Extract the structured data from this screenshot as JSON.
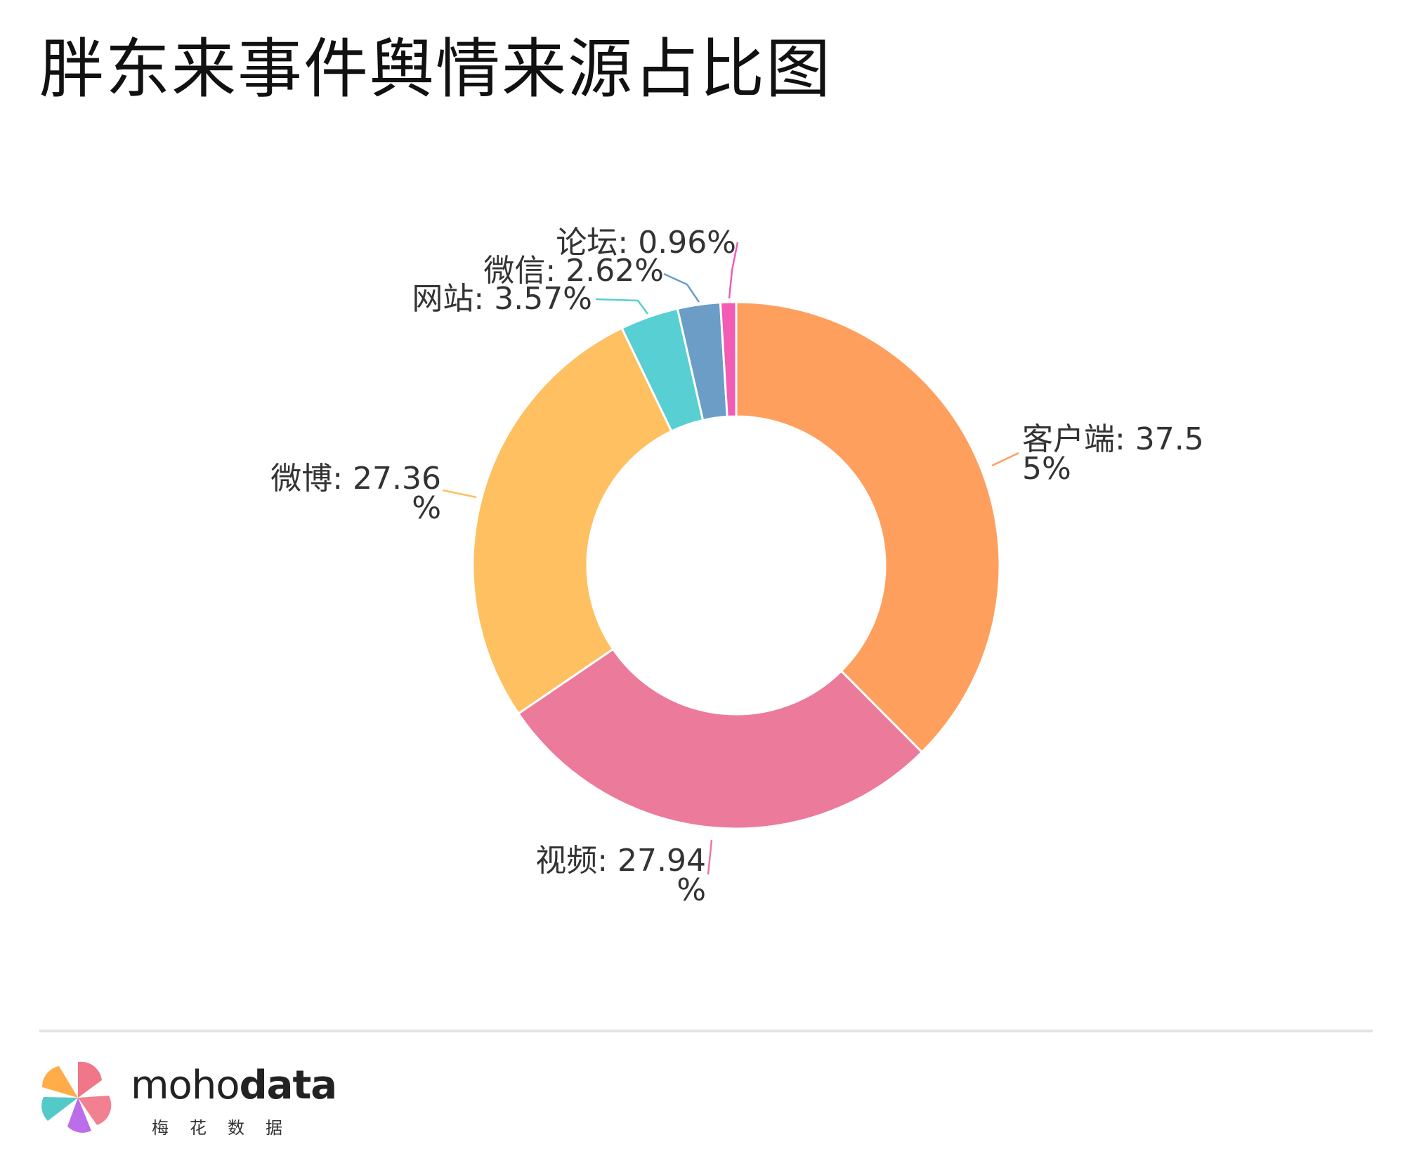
{
  "title": "胖东来事件舆情来源占比图",
  "brand": {
    "name_light": "moho",
    "name_bold": "data",
    "name_cn": "梅花数据"
  },
  "chart_data": {
    "type": "pie",
    "donut": true,
    "title": "胖东来事件舆情来源占比图",
    "slices": [
      {
        "name": "客户端",
        "value": 37.55,
        "label_lines": [
          "客户端: 37.5",
          "5%"
        ],
        "color": "#FF9F5E"
      },
      {
        "name": "视频",
        "value": 27.94,
        "label_lines": [
          "视频: 27.94",
          "%"
        ],
        "color": "#EC7A9A"
      },
      {
        "name": "微博",
        "value": 27.36,
        "label_lines": [
          "微博: 27.36",
          "%"
        ],
        "color": "#FEC061"
      },
      {
        "name": "网站",
        "value": 3.57,
        "label_lines": [
          "网站: 3.57%"
        ],
        "color": "#58CFD2"
      },
      {
        "name": "微信",
        "value": 2.62,
        "label_lines": [
          "微信: 2.62%"
        ],
        "color": "#6B9DC7"
      },
      {
        "name": "论坛",
        "value": 0.96,
        "label_lines": [
          "论坛: 0.96%"
        ],
        "color": "#F25CB4"
      }
    ]
  }
}
